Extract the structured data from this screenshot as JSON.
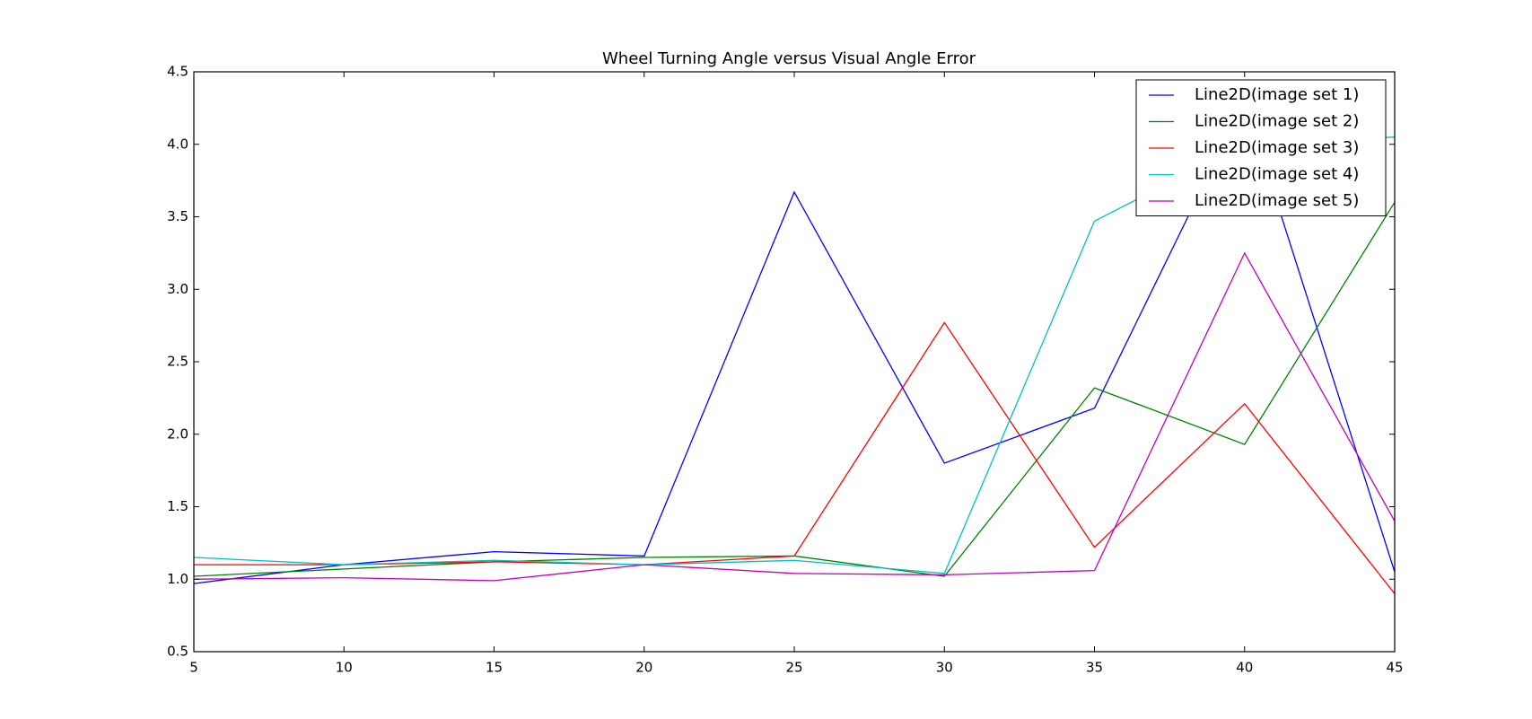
{
  "chart_data": {
    "type": "line",
    "title": "Wheel Turning Angle versus Visual Angle Error",
    "xlabel": "",
    "ylabel": "",
    "x": [
      5,
      10,
      15,
      20,
      25,
      30,
      35,
      40,
      45
    ],
    "xlim": [
      5,
      45
    ],
    "ylim": [
      0.5,
      4.5
    ],
    "xticks": [
      "5",
      "10",
      "15",
      "20",
      "25",
      "30",
      "35",
      "40",
      "45"
    ],
    "yticks": [
      "0.5",
      "1.0",
      "1.5",
      "2.0",
      "2.5",
      "3.0",
      "3.5",
      "4.0",
      "4.5"
    ],
    "grid": false,
    "legend_position": "top-right",
    "series": [
      {
        "name": "Line2D(image set 1)",
        "color": "#0000ff",
        "values": [
          0.97,
          1.1,
          1.19,
          1.16,
          3.67,
          1.8,
          2.18,
          4.3,
          1.05
        ]
      },
      {
        "name": "Line2D(image set 2)",
        "color": "#008000",
        "values": [
          1.02,
          1.07,
          1.12,
          1.15,
          1.16,
          1.02,
          2.32,
          1.93,
          3.6
        ]
      },
      {
        "name": "Line2D(image set 3)",
        "color": "#ff0000",
        "values": [
          1.1,
          1.1,
          1.12,
          1.1,
          1.16,
          2.77,
          1.22,
          2.21,
          0.9
        ]
      },
      {
        "name": "Line2D(image set 4)",
        "color": "#00bfbf",
        "values": [
          1.15,
          1.1,
          1.13,
          1.1,
          1.13,
          1.04,
          3.47,
          4.0,
          4.05
        ]
      },
      {
        "name": "Line2D(image set 5)",
        "color": "#bf00bf",
        "values": [
          1.0,
          1.01,
          0.99,
          1.1,
          1.04,
          1.03,
          1.06,
          3.25,
          1.4
        ]
      }
    ]
  }
}
